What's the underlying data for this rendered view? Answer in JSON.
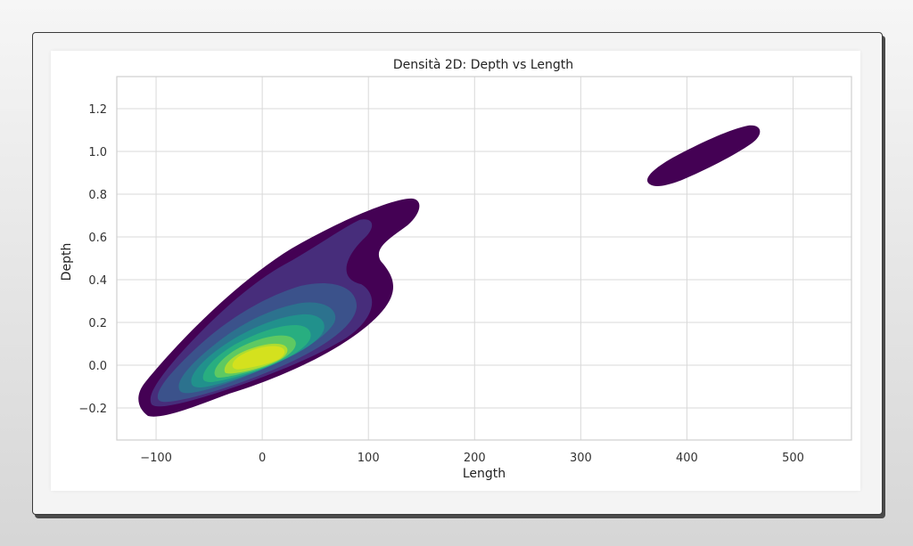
{
  "chart_data": {
    "type": "kde_contour_2d",
    "title": "Densità 2D: Depth vs Length",
    "xlabel": "Length",
    "ylabel": "Depth",
    "xlim": [
      -137,
      555
    ],
    "ylim": [
      -0.35,
      1.35
    ],
    "xticks": [
      -100,
      0,
      100,
      200,
      300,
      400,
      500
    ],
    "xtick_labels": [
      "−100",
      "0",
      "100",
      "200",
      "300",
      "400",
      "500"
    ],
    "yticks": [
      -0.2,
      0.0,
      0.2,
      0.4,
      0.6,
      0.8,
      1.0,
      1.2
    ],
    "ytick_labels": [
      "−0.2",
      "0.0",
      "0.2",
      "0.4",
      "0.6",
      "0.8",
      "1.0",
      "1.2"
    ],
    "grid": true,
    "colormap": "viridis",
    "palette": [
      "#440154",
      "#472d7b",
      "#3b528b",
      "#2c728e",
      "#21918c",
      "#28ae80",
      "#5ec962",
      "#addc30",
      "#fde725"
    ],
    "clusters": [
      {
        "center": [
          0,
          0.05
        ],
        "peak": [
          8,
          0.08
        ],
        "extent_x": [
          -120,
          148
        ],
        "extent_y": [
          -0.27,
          0.79
        ],
        "levels": 9
      },
      {
        "center": [
          418,
          0.97
        ],
        "extent_x": [
          368,
          468
        ],
        "extent_y": [
          0.83,
          1.11
        ],
        "levels": 1
      }
    ]
  }
}
